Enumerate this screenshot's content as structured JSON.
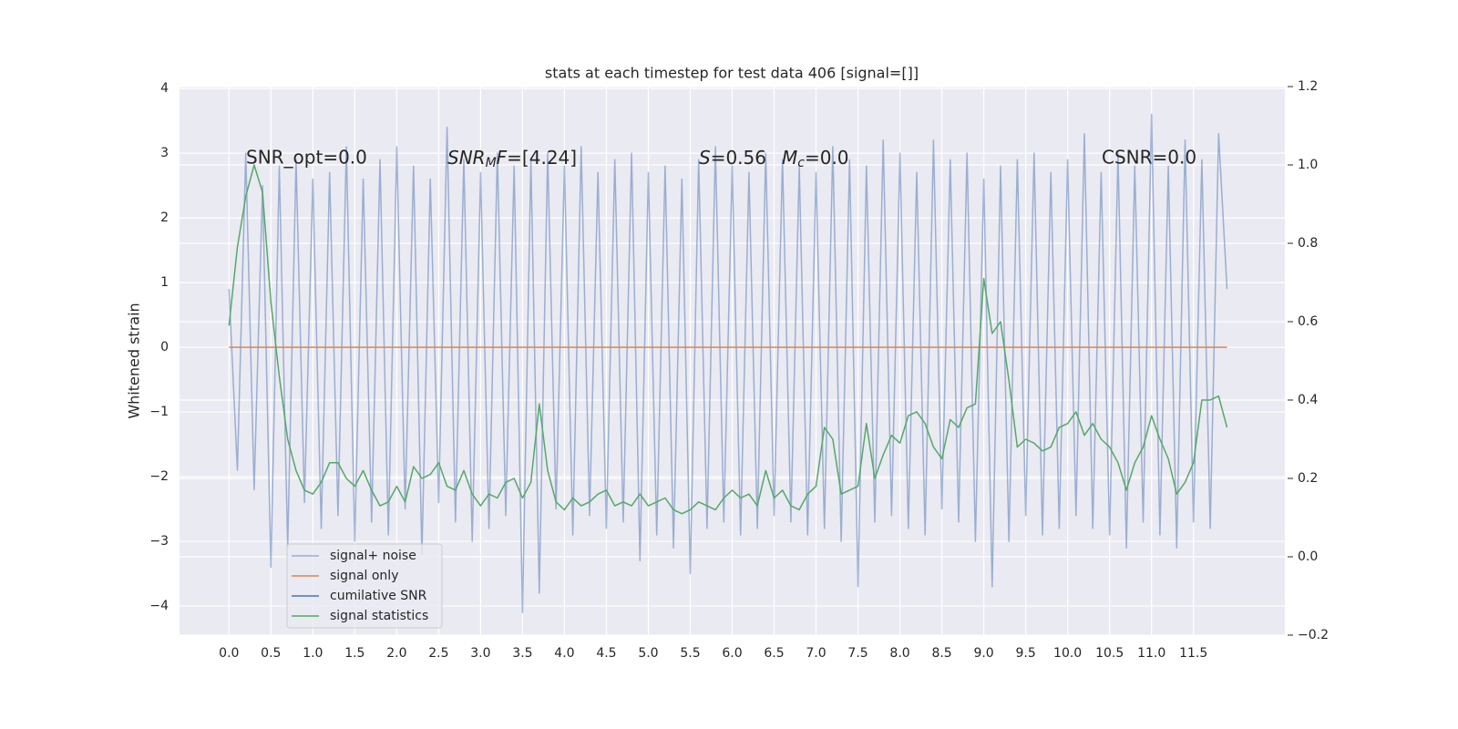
{
  "chart_data": {
    "type": "line",
    "title": "stats at each timestep for test data 406 [signal=[]]",
    "y_label": "Whitened strain",
    "annotations": [
      "SNR_opt=0.0",
      "SNR",
      "M",
      "F",
      "=[4.24]",
      "S",
      "=0.56",
      "M",
      "c",
      "=0.0",
      "CSNR=0.0"
    ],
    "xlim": [
      -0.59,
      12.59
    ],
    "ylim": [
      -4.45,
      4.03
    ],
    "y2lim": [
      -0.2,
      1.2
    ],
    "xticks": [
      {
        "value": 0,
        "label": "0.0"
      },
      0.5,
      {
        "value": 1,
        "label": "1.0"
      },
      1.5,
      {
        "value": 2,
        "label": "2.0"
      },
      2.5,
      {
        "value": 3,
        "label": "3.0"
      },
      3.5,
      {
        "value": 4,
        "label": "4.0"
      },
      4.5,
      {
        "value": 5,
        "label": "5.0"
      },
      5.5,
      {
        "value": 6,
        "label": "6.0"
      },
      6.5,
      {
        "value": 7,
        "label": "7.0"
      },
      7.5,
      {
        "value": 8,
        "label": "8.0"
      },
      8.5,
      {
        "value": 9,
        "label": "9.0"
      },
      9.5,
      {
        "value": 10,
        "label": "10.0"
      },
      10.5,
      {
        "value": 11,
        "label": "11.0"
      },
      11.5
    ],
    "yticks": [
      {
        "value": -4,
        "label": "−4"
      },
      {
        "value": -3,
        "label": "−3"
      },
      {
        "value": -2,
        "label": "−2"
      },
      {
        "value": -1,
        "label": "−1"
      },
      0,
      1,
      2,
      3,
      4
    ],
    "y2ticks": [
      {
        "value": -0.2,
        "label": "−0.2"
      },
      {
        "value": 0,
        "label": "0.0"
      },
      0.2,
      0.4,
      0.6,
      0.8,
      {
        "value": 1,
        "label": "1.0"
      },
      1.2
    ],
    "grid": true,
    "legend": "lower left",
    "series": [
      {
        "name": "signal+ noise",
        "color": "#4c72b0",
        "opacity": 0.5,
        "x": [
          0,
          0.1,
          0.2,
          0.3,
          0.4,
          0.5,
          0.6,
          0.7,
          0.8,
          0.9,
          1,
          1.1,
          1.2,
          1.3,
          1.4,
          1.5,
          1.6,
          1.7,
          1.8,
          1.9,
          2,
          2.1,
          2.2,
          2.3,
          2.4,
          2.5,
          2.6,
          2.7,
          2.8,
          2.9,
          3,
          3.1,
          3.2,
          3.3,
          3.4,
          3.5,
          3.6,
          3.7,
          3.8,
          3.9,
          4,
          4.1,
          4.2,
          4.3,
          4.4,
          4.5,
          4.6,
          4.7,
          4.8,
          4.9,
          5,
          5.1,
          5.2,
          5.3,
          5.4,
          5.5,
          5.6,
          5.7,
          5.8,
          5.9,
          6,
          6.1,
          6.2,
          6.3,
          6.4,
          6.5,
          6.6,
          6.7,
          6.8,
          6.9,
          7,
          7.1,
          7.2,
          7.3,
          7.4,
          7.5,
          7.6,
          7.7,
          7.8,
          7.9,
          8,
          8.1,
          8.2,
          8.3,
          8.4,
          8.5,
          8.6,
          8.7,
          8.8,
          8.9,
          9,
          9.1,
          9.2,
          9.3,
          9.4,
          9.5,
          9.6,
          9.7,
          9.8,
          9.9,
          10,
          10.1,
          10.2,
          10.3,
          10.4,
          10.5,
          10.6,
          10.7,
          10.8,
          10.9,
          11,
          11.1,
          11.2,
          11.3,
          11.4,
          11.5,
          11.6,
          11.7,
          11.8,
          11.9
        ],
        "values": [
          0.9,
          -1.9,
          3.0,
          -2.2,
          2.5,
          -3.4,
          2.8,
          -3.1,
          2.9,
          -2.4,
          2.6,
          -2.8,
          2.7,
          -2.6,
          3.1,
          -3.0,
          2.6,
          -2.7,
          2.9,
          -2.9,
          3.1,
          -2.5,
          2.8,
          -3.2,
          2.6,
          -2.4,
          3.4,
          -2.7,
          2.9,
          -3.0,
          2.7,
          -2.8,
          3.0,
          -2.6,
          2.8,
          -4.1,
          2.9,
          -3.8,
          3.0,
          -2.5,
          2.8,
          -2.9,
          3.1,
          -2.6,
          2.7,
          -2.8,
          2.9,
          -2.7,
          3.0,
          -3.3,
          2.7,
          -2.9,
          2.8,
          -3.1,
          2.6,
          -3.5,
          2.9,
          -2.8,
          3.1,
          -2.7,
          2.8,
          -2.9,
          2.7,
          -2.8,
          3.0,
          -2.6,
          2.9,
          -2.7,
          2.8,
          -2.9,
          2.7,
          -2.8,
          3.1,
          -3.0,
          2.9,
          -3.7,
          2.8,
          -2.7,
          3.2,
          -2.6,
          3.0,
          -2.8,
          2.7,
          -2.9,
          3.2,
          -2.5,
          2.9,
          -2.7,
          3.0,
          -3.0,
          2.6,
          -3.7,
          2.8,
          -3.0,
          2.9,
          -2.6,
          3.0,
          -2.9,
          2.7,
          -2.8,
          2.9,
          -2.6,
          3.3,
          -2.8,
          2.7,
          -2.9,
          3.0,
          -3.1,
          2.8,
          -2.7,
          3.6,
          -2.9,
          2.8,
          -3.1,
          3.2,
          -2.7,
          2.9,
          -2.8,
          3.3,
          0.9
        ]
      },
      {
        "name": "signal only",
        "color": "#dd8452",
        "x": [
          0,
          11.9
        ],
        "values": [
          0,
          0
        ]
      },
      {
        "name": "cumilative SNR",
        "color": "#4c72b0",
        "x": [],
        "values": []
      },
      {
        "name": "signal statistics",
        "color": "#55a868",
        "axis": "y2",
        "x": [
          0,
          0.1,
          0.2,
          0.3,
          0.4,
          0.5,
          0.6,
          0.7,
          0.8,
          0.9,
          1,
          1.1,
          1.2,
          1.3,
          1.4,
          1.5,
          1.6,
          1.7,
          1.8,
          1.9,
          2,
          2.1,
          2.2,
          2.3,
          2.4,
          2.5,
          2.6,
          2.7,
          2.8,
          2.9,
          3,
          3.1,
          3.2,
          3.3,
          3.4,
          3.5,
          3.6,
          3.7,
          3.8,
          3.9,
          4,
          4.1,
          4.2,
          4.3,
          4.4,
          4.5,
          4.6,
          4.7,
          4.8,
          4.9,
          5,
          5.1,
          5.2,
          5.3,
          5.4,
          5.5,
          5.6,
          5.7,
          5.8,
          5.9,
          6,
          6.1,
          6.2,
          6.3,
          6.4,
          6.5,
          6.6,
          6.7,
          6.8,
          6.9,
          7,
          7.1,
          7.2,
          7.3,
          7.4,
          7.5,
          7.6,
          7.7,
          7.8,
          7.9,
          8,
          8.1,
          8.2,
          8.3,
          8.4,
          8.5,
          8.6,
          8.7,
          8.8,
          8.9,
          9,
          9.1,
          9.2,
          9.3,
          9.4,
          9.5,
          9.6,
          9.7,
          9.8,
          9.9,
          10,
          10.1,
          10.2,
          10.3,
          10.4,
          10.5,
          10.6,
          10.7,
          10.8,
          10.9,
          11,
          11.1,
          11.2,
          11.3,
          11.4,
          11.5,
          11.6,
          11.7,
          11.8,
          11.9
        ],
        "values": [
          0.59,
          0.79,
          0.92,
          1.0,
          0.93,
          0.65,
          0.46,
          0.3,
          0.22,
          0.17,
          0.16,
          0.19,
          0.24,
          0.24,
          0.2,
          0.18,
          0.22,
          0.17,
          0.13,
          0.14,
          0.18,
          0.14,
          0.23,
          0.2,
          0.21,
          0.24,
          0.18,
          0.17,
          0.22,
          0.16,
          0.13,
          0.16,
          0.15,
          0.19,
          0.2,
          0.15,
          0.19,
          0.39,
          0.22,
          0.14,
          0.12,
          0.15,
          0.13,
          0.14,
          0.16,
          0.17,
          0.13,
          0.14,
          0.13,
          0.16,
          0.13,
          0.14,
          0.15,
          0.12,
          0.11,
          0.12,
          0.14,
          0.13,
          0.12,
          0.15,
          0.17,
          0.15,
          0.16,
          0.13,
          0.22,
          0.15,
          0.17,
          0.13,
          0.12,
          0.16,
          0.18,
          0.33,
          0.3,
          0.16,
          0.17,
          0.18,
          0.34,
          0.2,
          0.26,
          0.31,
          0.29,
          0.36,
          0.37,
          0.34,
          0.28,
          0.25,
          0.35,
          0.33,
          0.38,
          0.39,
          0.71,
          0.57,
          0.6,
          0.45,
          0.28,
          0.3,
          0.29,
          0.27,
          0.28,
          0.33,
          0.34,
          0.37,
          0.31,
          0.34,
          0.3,
          0.28,
          0.24,
          0.17,
          0.24,
          0.28,
          0.36,
          0.3,
          0.25,
          0.16,
          0.19,
          0.24,
          0.4,
          0.4,
          0.41,
          0.33
        ]
      }
    ]
  }
}
